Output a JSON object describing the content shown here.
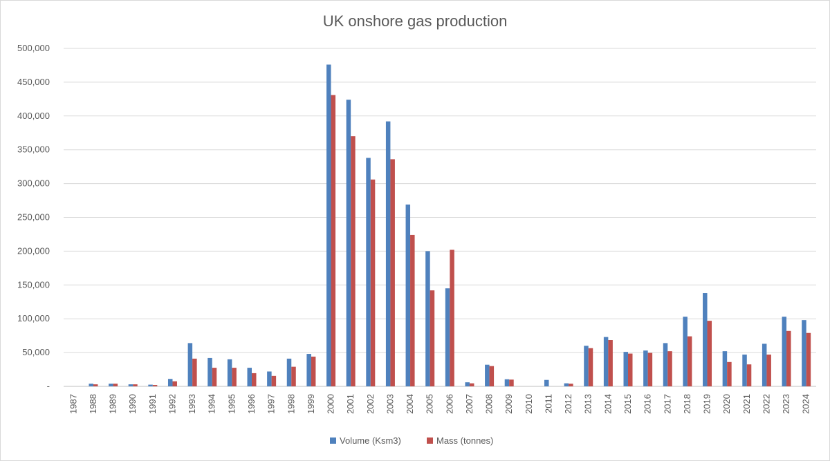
{
  "chart_data": {
    "type": "bar",
    "title": "UK onshore gas production",
    "xlabel": "",
    "ylabel": "",
    "ylim": [
      0,
      500000
    ],
    "ytick_labels": [
      "-",
      "50,000",
      "100,000",
      "150,000",
      "200,000",
      "250,000",
      "300,000",
      "350,000",
      "400,000",
      "450,000",
      "500,000"
    ],
    "grid": "horizontal",
    "legend_position": "bottom",
    "categories": [
      "1987",
      "1988",
      "1989",
      "1990",
      "1991",
      "1992",
      "1993",
      "1994",
      "1995",
      "1996",
      "1997",
      "1998",
      "1999",
      "2000",
      "2001",
      "2002",
      "2003",
      "2004",
      "2005",
      "2006",
      "2007",
      "2008",
      "2009",
      "2010",
      "2011",
      "2012",
      "2013",
      "2014",
      "2015",
      "2016",
      "2017",
      "2018",
      "2019",
      "2020",
      "2021",
      "2022",
      "2023",
      "2024"
    ],
    "series": [
      {
        "name": "Volume (Ksm3)",
        "color": "#4f81bd",
        "values": [
          0,
          4000,
          4000,
          3000,
          2500,
          11000,
          64000,
          42000,
          40000,
          27500,
          22000,
          41000,
          48000,
          476000,
          424000,
          338000,
          392000,
          269000,
          200000,
          145000,
          6000,
          32000,
          10500,
          0,
          9500,
          4500,
          60000,
          73000,
          51000,
          53000,
          64000,
          103000,
          138000,
          52000,
          47000,
          63000,
          103000,
          98000
        ]
      },
      {
        "name": "Mass (tonnes)",
        "color": "#c0504d",
        "values": [
          0,
          3000,
          4000,
          3000,
          2000,
          7500,
          41000,
          27500,
          27500,
          19500,
          15500,
          29000,
          44000,
          431000,
          370000,
          306000,
          336000,
          224000,
          142000,
          202000,
          4500,
          30000,
          10000,
          0,
          0,
          4000,
          56500,
          68500,
          48500,
          49500,
          52000,
          74000,
          97000,
          36000,
          32500,
          47000,
          82000,
          79000
        ]
      }
    ]
  }
}
